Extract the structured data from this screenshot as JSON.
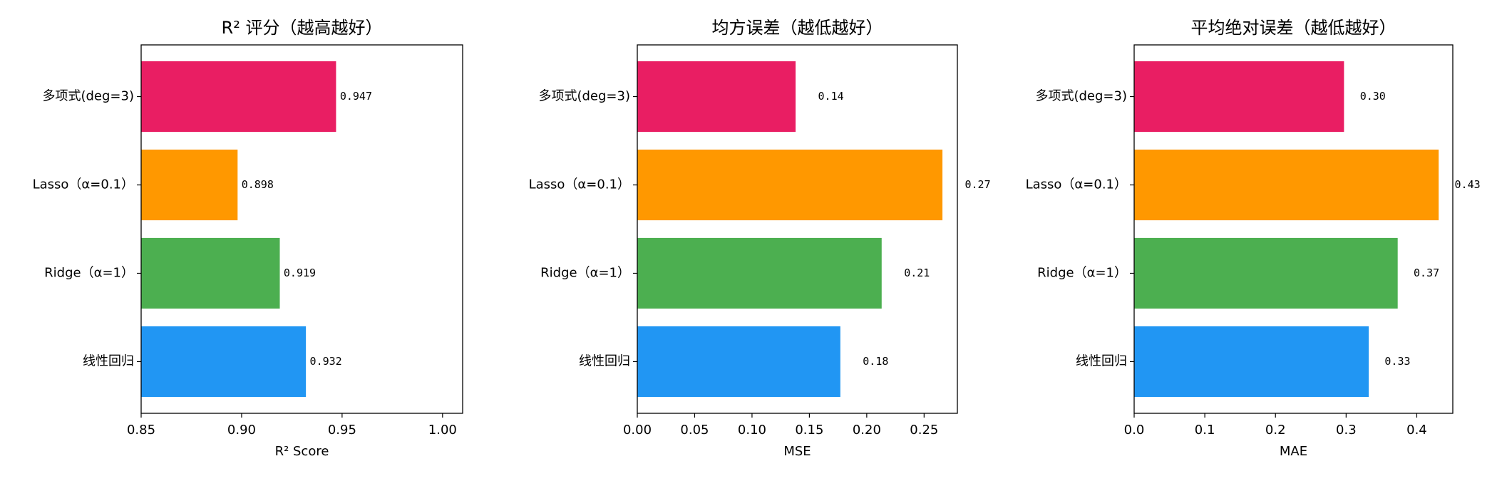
{
  "chart_data": [
    {
      "type": "barh",
      "title": "R² 评分（越高越好）",
      "xlabel": "R² Score",
      "categories": [
        "线性回归",
        "Ridge（α=1）",
        "Lasso（α=0.1）",
        "多项式(deg=3)"
      ],
      "values": [
        0.932,
        0.919,
        0.898,
        0.947
      ],
      "colors": [
        "#2196F3",
        "#4CAF50",
        "#FF9800",
        "#E91E63"
      ],
      "xlim": [
        0.85,
        1.01
      ],
      "xticks": [
        0.85,
        {
          "value": 0.9,
          "label": "0.90"
        },
        0.95,
        {
          "value": 1,
          "label": "1.00"
        }
      ]
    },
    {
      "type": "barh",
      "title": "均方误差（越低越好）",
      "xlabel": "MSE",
      "categories": [
        "线性回归",
        "Ridge（α=1）",
        "Lasso（α=0.1）",
        "多项式(deg=3)"
      ],
      "values": [
        0.177,
        0.213,
        0.266,
        0.138
      ],
      "value_labels": [
        "0.18",
        "0.21",
        "0.27",
        "0.14"
      ],
      "colors": [
        "#2196F3",
        "#4CAF50",
        "#FF9800",
        "#E91E63"
      ],
      "xlim": [
        0,
        0.279
      ],
      "xticks": [
        {
          "value": 0,
          "label": "0.00"
        },
        0.05,
        {
          "value": 0.1,
          "label": "0.10"
        },
        0.15,
        {
          "value": 0.2,
          "label": "0.20"
        },
        0.25
      ]
    },
    {
      "type": "barh",
      "title": "平均绝对误差（越低越好）",
      "xlabel": "MAE",
      "categories": [
        "线性回归",
        "Ridge（α=1）",
        "Lasso（α=0.1）",
        "多项式(deg=3)"
      ],
      "values": [
        0.332,
        0.373,
        0.431,
        0.297
      ],
      "value_labels": [
        "0.33",
        "0.37",
        "0.43",
        "0.30"
      ],
      "colors": [
        "#2196F3",
        "#4CAF50",
        "#FF9800",
        "#E91E63"
      ],
      "xlim": [
        0,
        0.451
      ],
      "xticks": [
        {
          "value": 0,
          "label": "0.0"
        },
        0.1,
        0.2,
        0.3,
        0.4
      ]
    }
  ]
}
